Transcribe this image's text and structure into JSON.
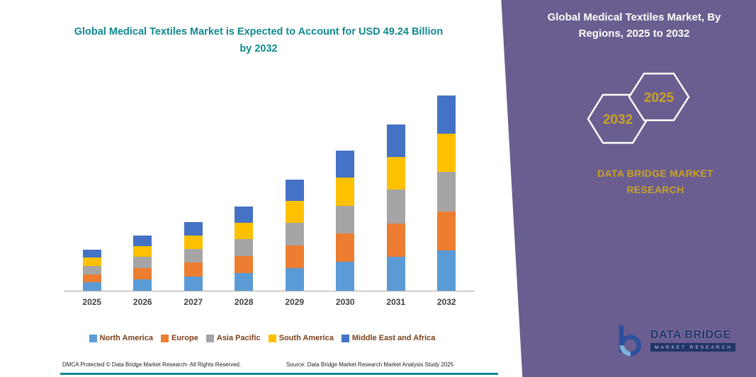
{
  "header": {
    "chart_title": "Global Medical Textiles Market is Expected to Account for USD 49.24 Billion by 2032"
  },
  "chart_data": {
    "type": "bar",
    "stacked": true,
    "title": "Global Medical Textiles Market is Expected to Account for USD 49.24 Billion by 2032",
    "unit": "USD Billion",
    "categories": [
      "2025",
      "2026",
      "2027",
      "2028",
      "2029",
      "2030",
      "2031",
      "2032"
    ],
    "series": [
      {
        "name": "North America",
        "color": "#5b9bd5",
        "values": [
          2.2,
          2.9,
          3.6,
          4.4,
          5.8,
          7.3,
          8.6,
          10.2
        ]
      },
      {
        "name": "Europe",
        "color": "#ed7d31",
        "values": [
          2.0,
          2.8,
          3.5,
          4.3,
          5.6,
          7.1,
          8.4,
          9.9
        ]
      },
      {
        "name": "Asia Pacific",
        "color": "#a5a5a5",
        "values": [
          2.1,
          2.8,
          3.5,
          4.3,
          5.7,
          7.1,
          8.5,
          10.0
        ]
      },
      {
        "name": "South America",
        "color": "#ffc000",
        "values": [
          2.1,
          2.8,
          3.4,
          4.1,
          5.5,
          7.0,
          8.3,
          9.6
        ]
      },
      {
        "name": "Middle East and Africa",
        "color": "#4472c4",
        "values": [
          2.0,
          2.7,
          3.4,
          4.1,
          5.4,
          6.9,
          8.2,
          9.54
        ]
      }
    ],
    "totals": [
      10.4,
      14.0,
      17.4,
      21.2,
      28.0,
      35.4,
      42.0,
      49.24
    ],
    "ylim": [
      0,
      50
    ],
    "grid": false,
    "legend_position": "bottom",
    "xlabel": "",
    "ylabel": ""
  },
  "side_panel": {
    "title": "Global Medical Textiles Market, By Regions, 2025 to 2032",
    "badges": {
      "left_year": "2032",
      "right_year": "2025"
    },
    "brand_text": "DATA BRIDGE MARKET RESEARCH",
    "background_color": "#6a5d8f",
    "accent_gold": "#c9a227"
  },
  "logo": {
    "name": "DATA BRIDGE",
    "tagline": "MARKET RESEARCH"
  },
  "footer": {
    "dmca": "DMCA Protected © Data Bridge Market Research-  All Rights Reserved.",
    "source": "Source: Data Bridge Market Research  Market Analysis Study 2025"
  },
  "colors": {
    "title_teal": "#11898f",
    "legend_text": "#7b3f1a",
    "axis_label": "#3f3f3f",
    "bottom_line_teal": "#11898f"
  }
}
